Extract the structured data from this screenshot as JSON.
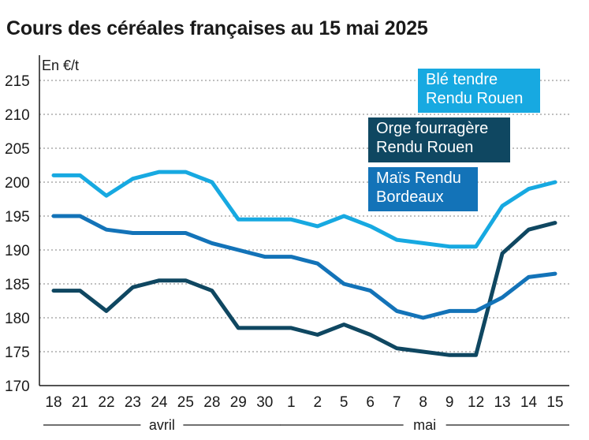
{
  "chart_data": {
    "type": "line",
    "title": "Cours des céréales françaises au 15 mai 2025",
    "ylabel": "En €/t",
    "ylim": [
      170,
      215
    ],
    "yticks": [
      170,
      175,
      180,
      185,
      190,
      195,
      200,
      205,
      210,
      215
    ],
    "grid": true,
    "categories": [
      "18",
      "21",
      "22",
      "23",
      "24",
      "25",
      "28",
      "29",
      "30",
      "1",
      "2",
      "5",
      "6",
      "7",
      "8",
      "9",
      "12",
      "13",
      "14",
      "15"
    ],
    "groups": [
      {
        "label": "avril",
        "from": 0,
        "to": 8
      },
      {
        "label": "mai",
        "from": 9,
        "to": 19
      }
    ],
    "series": [
      {
        "name": "Blé tendre Rendu Rouen",
        "color": "#17a9e1",
        "values": [
          201,
          201,
          198,
          200.5,
          201.5,
          201.5,
          200,
          194.5,
          194.5,
          194.5,
          193.5,
          195,
          193.5,
          191.5,
          191,
          190.5,
          190.5,
          196.5,
          199,
          200
        ]
      },
      {
        "name": "Orge fourragère Rendu Rouen",
        "color": "#0f4761",
        "values": [
          184,
          184,
          181,
          184.5,
          185.5,
          185.5,
          184,
          178.5,
          178.5,
          178.5,
          177.5,
          179,
          177.5,
          175.5,
          175,
          174.5,
          174.5,
          189.5,
          193,
          194
        ]
      },
      {
        "name": "Maïs Rendu Bordeaux",
        "color": "#1373b8",
        "values": [
          195,
          195,
          193,
          192.5,
          192.5,
          192.5,
          191,
          190,
          189,
          189,
          188,
          185,
          184,
          181,
          180,
          181,
          181,
          183,
          186,
          186.5
        ]
      }
    ],
    "legend": [
      {
        "lines": [
          "Blé tendre",
          "Rendu Rouen"
        ],
        "color": "#17a9e1"
      },
      {
        "lines": [
          "Orge fourragère",
          "Rendu Rouen"
        ],
        "color": "#0f4761"
      },
      {
        "lines": [
          "Maïs Rendu",
          "Bordeaux"
        ],
        "color": "#1373b8"
      }
    ]
  }
}
